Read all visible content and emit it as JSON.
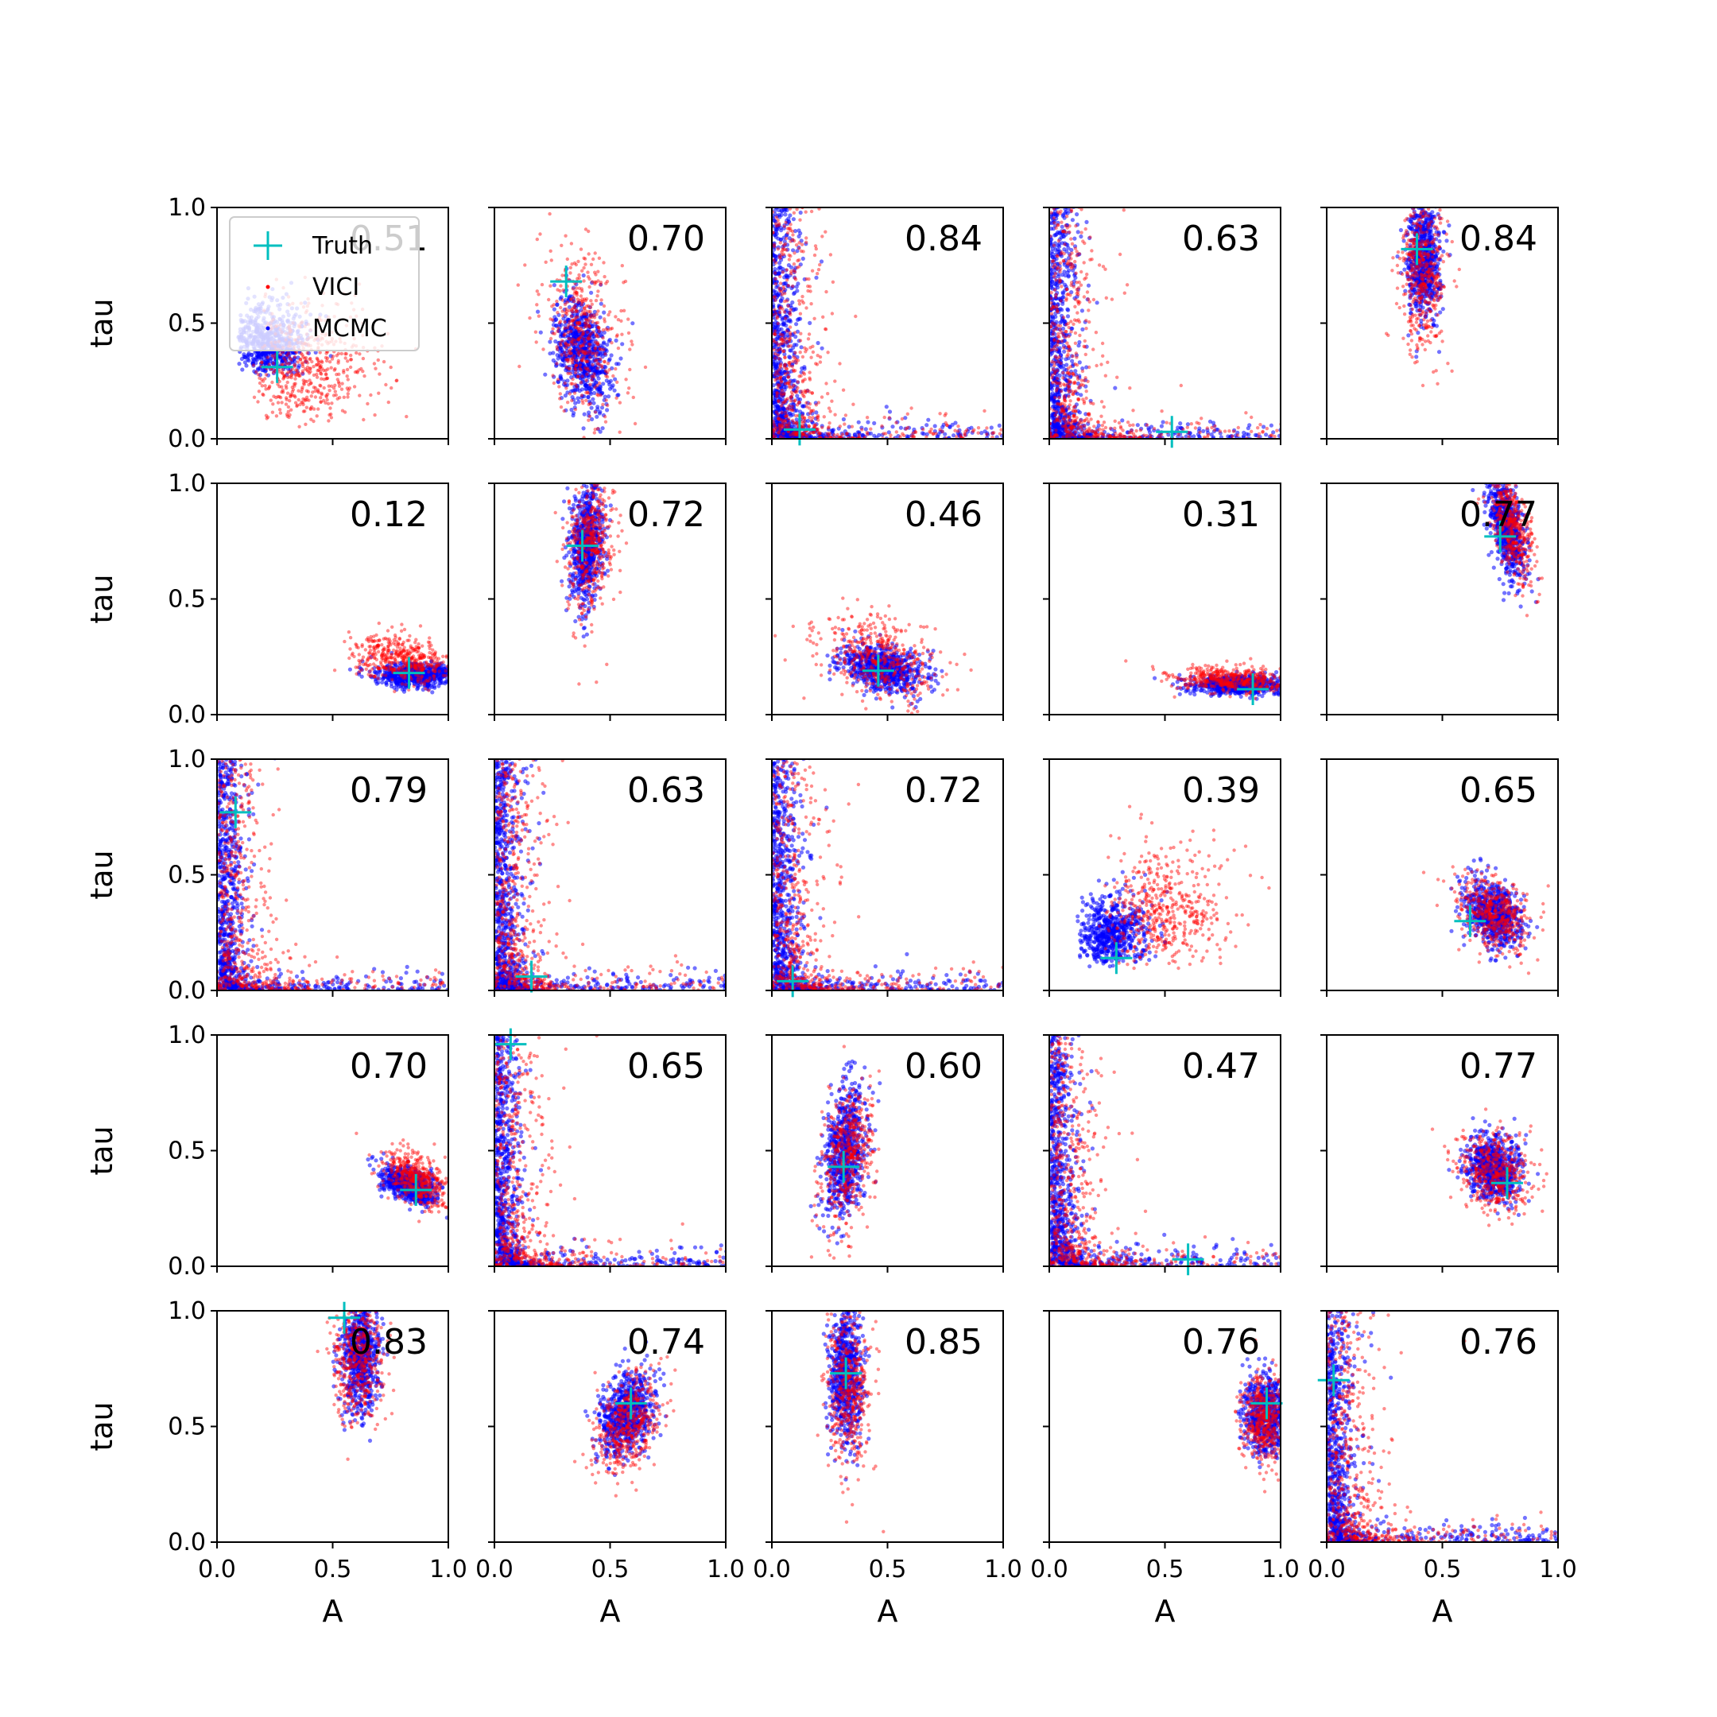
{
  "chart_data": {
    "type": "scatter",
    "grid_rows": 5,
    "grid_cols": 5,
    "xlabel": "A",
    "ylabel": "tau",
    "xlim": [
      0.0,
      1.0
    ],
    "ylim": [
      0.0,
      1.0
    ],
    "x_ticks": [
      "0.0",
      "0.5",
      "1.0"
    ],
    "y_ticks": [
      "0.0",
      "0.5",
      "1.0"
    ],
    "grid": false,
    "legend": {
      "placement": "top-left of first panel",
      "entries": [
        {
          "label": "Truth",
          "marker": "plus",
          "color": "#00bfbf"
        },
        {
          "label": "VICI",
          "marker": "dot",
          "color": "#ff0000"
        },
        {
          "label": "MCMC",
          "marker": "dot",
          "color": "#0000ff"
        }
      ]
    },
    "colors": {
      "truth": "#00bfbf",
      "vici": "#ff0000",
      "mcmc": "#0000ff"
    },
    "panels": [
      {
        "value": "0.51",
        "truth": [
          0.26,
          0.31
        ],
        "shape": "corner",
        "mcmc": {
          "cx": 0.16,
          "cy": 0.35
        },
        "vici": {
          "cx": 0.28,
          "cy": 0.18
        }
      },
      {
        "value": "0.70",
        "truth": [
          0.31,
          0.68
        ],
        "shape": "blob",
        "mcmc": {
          "cx": 0.38,
          "cy": 0.38,
          "sx": 0.06,
          "sy": 0.12,
          "rho": -0.3
        },
        "vici": {
          "cx": 0.38,
          "cy": 0.45,
          "sx": 0.09,
          "sy": 0.19,
          "rho": -0.3
        }
      },
      {
        "value": "0.84",
        "truth": [
          0.12,
          0.04
        ],
        "shape": "lcurve"
      },
      {
        "value": "0.63",
        "truth": [
          0.53,
          0.03
        ],
        "shape": "lcurve"
      },
      {
        "value": "0.84",
        "truth": [
          0.39,
          0.82
        ],
        "shape": "blob",
        "mcmc": {
          "cx": 0.42,
          "cy": 0.78,
          "sx": 0.035,
          "sy": 0.13,
          "rho": 0.0
        },
        "vici": {
          "cx": 0.42,
          "cy": 0.72,
          "sx": 0.05,
          "sy": 0.17,
          "rho": 0.0
        }
      },
      {
        "value": "0.12",
        "truth": [
          0.83,
          0.18
        ],
        "shape": "blob",
        "mcmc": {
          "cx": 0.86,
          "cy": 0.17,
          "sx": 0.09,
          "sy": 0.025,
          "rho": 0.0
        },
        "vici": {
          "cx": 0.8,
          "cy": 0.24,
          "sx": 0.1,
          "sy": 0.05,
          "rho": -0.3
        }
      },
      {
        "value": "0.72",
        "truth": [
          0.38,
          0.73
        ],
        "shape": "blob",
        "mcmc": {
          "cx": 0.4,
          "cy": 0.74,
          "sx": 0.035,
          "sy": 0.13,
          "rho": 0.2
        },
        "vici": {
          "cx": 0.42,
          "cy": 0.75,
          "sx": 0.05,
          "sy": 0.16,
          "rho": 0.2
        }
      },
      {
        "value": "0.46",
        "truth": [
          0.46,
          0.19
        ],
        "shape": "blob",
        "mcmc": {
          "cx": 0.48,
          "cy": 0.2,
          "sx": 0.09,
          "sy": 0.05,
          "rho": -0.3
        },
        "vici": {
          "cx": 0.47,
          "cy": 0.24,
          "sx": 0.13,
          "sy": 0.09,
          "rho": -0.3
        }
      },
      {
        "value": "0.31",
        "truth": [
          0.88,
          0.11
        ],
        "shape": "blob",
        "mcmc": {
          "cx": 0.82,
          "cy": 0.13,
          "sx": 0.1,
          "sy": 0.02,
          "rho": 0.0
        },
        "vici": {
          "cx": 0.78,
          "cy": 0.15,
          "sx": 0.13,
          "sy": 0.03,
          "rho": -0.2
        }
      },
      {
        "value": "0.77",
        "truth": [
          0.75,
          0.77
        ],
        "shape": "blob",
        "mcmc": {
          "cx": 0.78,
          "cy": 0.8,
          "sx": 0.04,
          "sy": 0.11,
          "rho": -0.5
        },
        "vici": {
          "cx": 0.8,
          "cy": 0.82,
          "sx": 0.05,
          "sy": 0.12,
          "rho": -0.5
        }
      },
      {
        "value": "0.79",
        "truth": [
          0.08,
          0.77
        ],
        "shape": "lcurve"
      },
      {
        "value": "0.63",
        "truth": [
          0.16,
          0.06
        ],
        "shape": "lcurve"
      },
      {
        "value": "0.72",
        "truth": [
          0.09,
          0.04
        ],
        "shape": "lcurve"
      },
      {
        "value": "0.39",
        "truth": [
          0.29,
          0.14
        ],
        "shape": "corner",
        "mcmc": {
          "cx": 0.2,
          "cy": 0.18
        },
        "vici": {
          "cx": 0.35,
          "cy": 0.22
        }
      },
      {
        "value": "0.65",
        "truth": [
          0.62,
          0.3
        ],
        "shape": "blob",
        "mcmc": {
          "cx": 0.72,
          "cy": 0.33,
          "sx": 0.06,
          "sy": 0.07,
          "rho": -0.3
        },
        "vici": {
          "cx": 0.73,
          "cy": 0.33,
          "sx": 0.08,
          "sy": 0.08,
          "rho": -0.3
        }
      },
      {
        "value": "0.70",
        "truth": [
          0.86,
          0.33
        ],
        "shape": "blob",
        "mcmc": {
          "cx": 0.83,
          "cy": 0.35,
          "sx": 0.06,
          "sy": 0.04,
          "rho": -0.5
        },
        "vici": {
          "cx": 0.86,
          "cy": 0.38,
          "sx": 0.07,
          "sy": 0.06,
          "rho": -0.5
        }
      },
      {
        "value": "0.65",
        "truth": [
          0.07,
          0.96
        ],
        "shape": "lcurve"
      },
      {
        "value": "0.60",
        "truth": [
          0.31,
          0.43
        ],
        "shape": "blob",
        "mcmc": {
          "cx": 0.32,
          "cy": 0.5,
          "sx": 0.045,
          "sy": 0.15,
          "rho": 0.3
        },
        "vici": {
          "cx": 0.33,
          "cy": 0.48,
          "sx": 0.06,
          "sy": 0.16,
          "rho": 0.3
        }
      },
      {
        "value": "0.47",
        "truth": [
          0.6,
          0.03
        ],
        "shape": "lcurve"
      },
      {
        "value": "0.77",
        "truth": [
          0.78,
          0.36
        ],
        "shape": "blob",
        "mcmc": {
          "cx": 0.72,
          "cy": 0.42,
          "sx": 0.06,
          "sy": 0.07,
          "rho": -0.2
        },
        "vici": {
          "cx": 0.73,
          "cy": 0.41,
          "sx": 0.08,
          "sy": 0.09,
          "rho": -0.2
        }
      },
      {
        "value": "0.83",
        "truth": [
          0.55,
          0.97
        ],
        "shape": "blob",
        "mcmc": {
          "cx": 0.62,
          "cy": 0.8,
          "sx": 0.04,
          "sy": 0.12,
          "rho": 0.0
        },
        "vici": {
          "cx": 0.61,
          "cy": 0.8,
          "sx": 0.055,
          "sy": 0.13,
          "rho": 0.0
        }
      },
      {
        "value": "0.74",
        "truth": [
          0.59,
          0.6
        ],
        "shape": "blob",
        "mcmc": {
          "cx": 0.57,
          "cy": 0.56,
          "sx": 0.06,
          "sy": 0.09,
          "rho": 0.3
        },
        "vici": {
          "cx": 0.58,
          "cy": 0.52,
          "sx": 0.07,
          "sy": 0.11,
          "rho": 0.3
        }
      },
      {
        "value": "0.85",
        "truth": [
          0.32,
          0.73
        ],
        "shape": "blob",
        "mcmc": {
          "cx": 0.32,
          "cy": 0.72,
          "sx": 0.035,
          "sy": 0.14,
          "rho": 0.0
        },
        "vici": {
          "cx": 0.33,
          "cy": 0.66,
          "sx": 0.05,
          "sy": 0.17,
          "rho": 0.0
        }
      },
      {
        "value": "0.76",
        "truth": [
          0.94,
          0.6
        ],
        "shape": "blob",
        "mcmc": {
          "cx": 0.94,
          "cy": 0.55,
          "sx": 0.05,
          "sy": 0.08,
          "rho": 0.0
        },
        "vici": {
          "cx": 0.93,
          "cy": 0.52,
          "sx": 0.05,
          "sy": 0.09,
          "rho": 0.0
        }
      },
      {
        "value": "0.76",
        "truth": [
          0.03,
          0.7
        ],
        "shape": "lcurve"
      }
    ]
  }
}
